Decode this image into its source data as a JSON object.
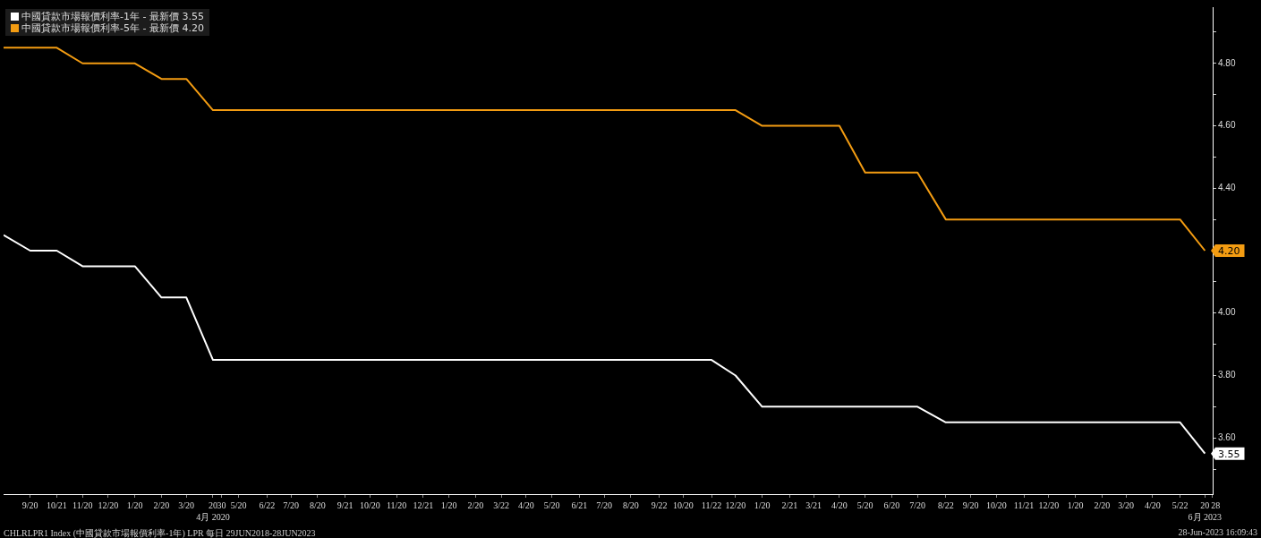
{
  "chart_data": {
    "type": "line",
    "series": [
      {
        "name": "中國貸款市場報價利率-1年 - 最新價 3.55",
        "color": "#ffffff",
        "x": [
          "2019-08-20",
          "2019-09-20",
          "2019-10-21",
          "2019-11-20",
          "2020-01-20",
          "2020-02-20",
          "2020-03-20",
          "2020-04-20",
          "2021-11-22",
          "2021-12-20",
          "2022-01-20",
          "2022-07-20",
          "2022-08-22",
          "2023-05-22",
          "2023-06-20"
        ],
        "values": [
          4.25,
          4.2,
          4.2,
          4.15,
          4.15,
          4.05,
          4.05,
          3.85,
          3.85,
          3.8,
          3.7,
          3.7,
          3.65,
          3.65,
          3.55
        ],
        "value_labels": [
          null,
          null,
          null,
          null,
          null,
          null,
          null,
          null,
          null,
          null,
          null,
          null,
          null,
          null,
          "3.55"
        ]
      },
      {
        "name": "中國貸款市場報價利率-5年 - 最新價 4.20",
        "color": "#f39c12",
        "x": [
          "2019-08-20",
          "2019-10-21",
          "2019-11-20",
          "2020-01-20",
          "2020-02-20",
          "2020-03-20",
          "2020-04-20",
          "2021-12-20",
          "2022-01-20",
          "2022-04-20",
          "2022-05-20",
          "2022-07-20",
          "2022-08-22",
          "2023-05-22",
          "2023-06-20"
        ],
        "values": [
          4.85,
          4.85,
          4.8,
          4.8,
          4.75,
          4.75,
          4.65,
          4.65,
          4.6,
          4.6,
          4.45,
          4.45,
          4.3,
          4.3,
          4.2
        ],
        "value_labels": [
          null,
          null,
          null,
          null,
          null,
          null,
          null,
          null,
          null,
          null,
          null,
          null,
          null,
          null,
          "4.20"
        ]
      }
    ],
    "xlim": [
      "2019-08-20",
      "2023-06-29"
    ],
    "xticks": [
      {
        "value": "2019-09-20",
        "label": "9/20"
      },
      {
        "value": "2019-10-21",
        "label": "10/21"
      },
      {
        "value": "2019-11-20",
        "label": "11/20"
      },
      {
        "value": "2019-12-20",
        "label": "12/20"
      },
      {
        "value": "2020-01-20",
        "label": "1/20"
      },
      {
        "value": "2020-02-20",
        "label": "2/20"
      },
      {
        "value": "2020-03-20",
        "label": "3/20"
      },
      {
        "value": "2020-04-20",
        "label": "20\n4月 2020"
      },
      {
        "value": "2020-04-30",
        "label": "30"
      },
      {
        "value": "2020-05-20",
        "label": "5/20"
      },
      {
        "value": "2020-06-22",
        "label": "6/22"
      },
      {
        "value": "2020-07-20",
        "label": "7/20"
      },
      {
        "value": "2020-08-20",
        "label": "8/20"
      },
      {
        "value": "2020-09-21",
        "label": "9/21"
      },
      {
        "value": "2020-10-20",
        "label": "10/20"
      },
      {
        "value": "2020-11-20",
        "label": "11/20"
      },
      {
        "value": "2020-12-21",
        "label": "12/21"
      },
      {
        "value": "2021-01-20",
        "label": "1/20"
      },
      {
        "value": "2021-02-20",
        "label": "2/20"
      },
      {
        "value": "2021-03-22",
        "label": "3/22"
      },
      {
        "value": "2021-04-20",
        "label": "4/20"
      },
      {
        "value": "2021-05-20",
        "label": "5/20"
      },
      {
        "value": "2021-06-21",
        "label": "6/21"
      },
      {
        "value": "2021-07-20",
        "label": "7/20"
      },
      {
        "value": "2021-08-20",
        "label": "8/20"
      },
      {
        "value": "2021-09-22",
        "label": "9/22"
      },
      {
        "value": "2021-10-20",
        "label": "10/20"
      },
      {
        "value": "2021-11-22",
        "label": "11/22"
      },
      {
        "value": "2021-12-20",
        "label": "12/20"
      },
      {
        "value": "2022-01-20",
        "label": "1/20"
      },
      {
        "value": "2022-02-21",
        "label": "2/21"
      },
      {
        "value": "2022-03-21",
        "label": "3/21"
      },
      {
        "value": "2022-04-20",
        "label": "4/20"
      },
      {
        "value": "2022-05-20",
        "label": "5/20"
      },
      {
        "value": "2022-06-20",
        "label": "6/20"
      },
      {
        "value": "2022-07-20",
        "label": "7/20"
      },
      {
        "value": "2022-08-22",
        "label": "8/22"
      },
      {
        "value": "2022-09-20",
        "label": "9/20"
      },
      {
        "value": "2022-10-20",
        "label": "10/20"
      },
      {
        "value": "2022-11-21",
        "label": "11/21"
      },
      {
        "value": "2022-12-20",
        "label": "12/20"
      },
      {
        "value": "2023-01-20",
        "label": "1/20"
      },
      {
        "value": "2023-02-20",
        "label": "2/20"
      },
      {
        "value": "2023-03-20",
        "label": "3/20"
      },
      {
        "value": "2023-04-20",
        "label": "4/20"
      },
      {
        "value": "2023-05-22",
        "label": "5/22"
      },
      {
        "value": "2023-06-20",
        "label": "20\n6月 2023"
      },
      {
        "value": "2023-06-28",
        "label": "28"
      }
    ],
    "ylim": [
      3.42,
      4.98
    ],
    "yticks": [
      {
        "value": 3.5,
        "label": null
      },
      {
        "value": 3.6,
        "label": "3.60"
      },
      {
        "value": 3.7,
        "label": null
      },
      {
        "value": 3.8,
        "label": "3.80"
      },
      {
        "value": 3.9,
        "label": null
      },
      {
        "value": 4.0,
        "label": "4.00"
      },
      {
        "value": 4.1,
        "label": null
      },
      {
        "value": 4.2,
        "label": null
      },
      {
        "value": 4.3,
        "label": null
      },
      {
        "value": 4.4,
        "label": "4.40"
      },
      {
        "value": 4.5,
        "label": null
      },
      {
        "value": 4.6,
        "label": "4.60"
      },
      {
        "value": 4.7,
        "label": null
      },
      {
        "value": 4.8,
        "label": "4.80"
      },
      {
        "value": 4.9,
        "label": null
      }
    ],
    "grid": false,
    "legend": "top left",
    "marker": "none",
    "line_style": "solid",
    "annotations": [
      "CHLRLPR1 Index (中國貸款市場報價利率-1年) LPR  每日 29JUN2018-28JUN2023",
      "28-Jun-2023 16:09:43"
    ]
  }
}
